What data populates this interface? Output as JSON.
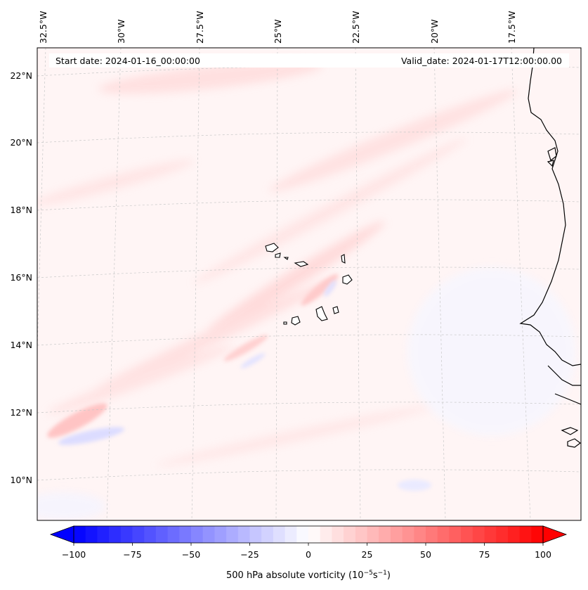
{
  "map": {
    "start_date_label": "Start date: 2024-01-16_00:00:00",
    "valid_date_label": "Valid_date: 2024-01-17T12:00:00.00",
    "longitude_labels": [
      "32.5°W",
      "30°W",
      "27.5°W",
      "25°W",
      "22.5°W",
      "20°W",
      "17.5°W"
    ],
    "latitude_labels": [
      "22°N",
      "20°N",
      "18°N",
      "16°N",
      "14°N",
      "12°N",
      "10°N"
    ]
  },
  "colorbar": {
    "title_prefix": "500 hPa absolute vorticity (10",
    "title_exp1": "−5",
    "title_mid": "s",
    "title_exp2": "−1",
    "title_suffix": ")",
    "tick_labels": [
      "−100",
      "−75",
      "−50",
      "−25",
      "0",
      "25",
      "50",
      "75",
      "100"
    ],
    "range": [
      -100,
      100
    ],
    "step": 5,
    "colors": {
      "min": "#0000ff",
      "mid": "#ffffff",
      "max": "#ff0000"
    }
  },
  "colors": {
    "background_field": "#fff5f5",
    "coastline": "#000000",
    "gridline": "#c8c8c8"
  }
}
